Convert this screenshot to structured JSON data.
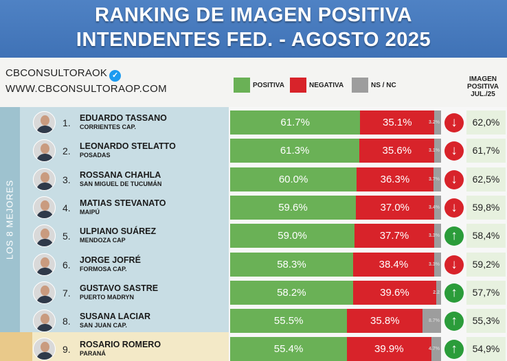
{
  "header": {
    "line1": "RANKING DE IMAGEN POSITIVA",
    "line2": "INTENDENTES FED. - AGOSTO 2025"
  },
  "brand": {
    "name": "CBCONSULTORAOK",
    "website": "WWW.CBCONSULTORAOP.COM",
    "verified_icon": "verified-badge-icon"
  },
  "legend": {
    "positive": "POSITIVA",
    "negative": "NEGATIVA",
    "ns": "NS / NC"
  },
  "colors": {
    "positive": "#6ab156",
    "negative": "#d8232a",
    "ns": "#9d9d9d",
    "up": "#2b9c3a",
    "down": "#d8232a",
    "header": "#4a7dc0"
  },
  "previous_header": [
    "IMAGEN",
    "POSITIVA",
    "JUL./25"
  ],
  "side_label": "LOS 8 MEJORES",
  "chart_data": {
    "type": "bar",
    "stacked": true,
    "orientation": "horizontal",
    "title": "RANKING DE IMAGEN POSITIVA INTENDENTES FED. - AGOSTO 2025",
    "series": [
      {
        "name": "POSITIVA",
        "values": [
          61.7,
          61.3,
          60.0,
          59.6,
          59.0,
          58.3,
          58.2,
          55.5,
          55.4
        ]
      },
      {
        "name": "NEGATIVA",
        "values": [
          35.1,
          35.6,
          36.3,
          37.0,
          37.7,
          38.4,
          39.6,
          35.8,
          39.9
        ]
      },
      {
        "name": "NS / NC",
        "values": [
          3.2,
          3.1,
          3.7,
          3.4,
          3.3,
          3.3,
          2.2,
          8.7,
          4.7
        ]
      }
    ],
    "rows": [
      {
        "rank": "1.",
        "name": "EDUARDO TASSANO",
        "city": "CORRIENTES CAP.",
        "pos": 61.7,
        "neg": 35.1,
        "ns": 3.2,
        "pos_label": "61.7%",
        "neg_label": "35.1%",
        "ns_label": "3.2%",
        "trend": "down",
        "prev_label": "62,0%"
      },
      {
        "rank": "2.",
        "name": "LEONARDO STELATTO",
        "city": "POSADAS",
        "pos": 61.3,
        "neg": 35.6,
        "ns": 3.1,
        "pos_label": "61.3%",
        "neg_label": "35.6%",
        "ns_label": "3.1%",
        "trend": "down",
        "prev_label": "61,7%"
      },
      {
        "rank": "3.",
        "name": "ROSSANA CHAHLA",
        "city": "SAN MIGUEL DE TUCUMÁN",
        "pos": 60.0,
        "neg": 36.3,
        "ns": 3.7,
        "pos_label": "60.0%",
        "neg_label": "36.3%",
        "ns_label": "3.7%",
        "trend": "down",
        "prev_label": "62,5%"
      },
      {
        "rank": "4.",
        "name": "MATIAS STEVANATO",
        "city": "MAIPÚ",
        "pos": 59.6,
        "neg": 37.0,
        "ns": 3.4,
        "pos_label": "59.6%",
        "neg_label": "37.0%",
        "ns_label": "3.4%",
        "trend": "down",
        "prev_label": "59,8%"
      },
      {
        "rank": "5.",
        "name": "ULPIANO SUÁREZ",
        "city": "MENDOZA CAP",
        "pos": 59.0,
        "neg": 37.7,
        "ns": 3.3,
        "pos_label": "59.0%",
        "neg_label": "37.7%",
        "ns_label": "3.3%",
        "trend": "up",
        "prev_label": "58,4%"
      },
      {
        "rank": "6.",
        "name": "JORGE JOFRÉ",
        "city": "FORMOSA CAP.",
        "pos": 58.3,
        "neg": 38.4,
        "ns": 3.3,
        "pos_label": "58.3%",
        "neg_label": "38.4%",
        "ns_label": "3.3%",
        "trend": "down",
        "prev_label": "59,2%"
      },
      {
        "rank": "7.",
        "name": "GUSTAVO SASTRE",
        "city": "PUERTO MADRYN",
        "pos": 58.2,
        "neg": 39.6,
        "ns": 2.2,
        "pos_label": "58.2%",
        "neg_label": "39.6%",
        "ns_label": "2.2",
        "trend": "up",
        "prev_label": "57,7%"
      },
      {
        "rank": "8.",
        "name": "SUSANA LACIAR",
        "city": "SAN JUAN CAP.",
        "pos": 55.5,
        "neg": 35.8,
        "ns": 8.7,
        "pos_label": "55.5%",
        "neg_label": "35.8%",
        "ns_label": "8.7%",
        "trend": "up",
        "prev_label": "55,3%"
      },
      {
        "rank": "9.",
        "name": "ROSARIO ROMERO",
        "city": "PARANÁ",
        "pos": 55.4,
        "neg": 39.9,
        "ns": 4.7,
        "pos_label": "55.4%",
        "neg_label": "39.9%",
        "ns_label": "4.7%",
        "trend": "up",
        "prev_label": "54,9%"
      }
    ]
  }
}
